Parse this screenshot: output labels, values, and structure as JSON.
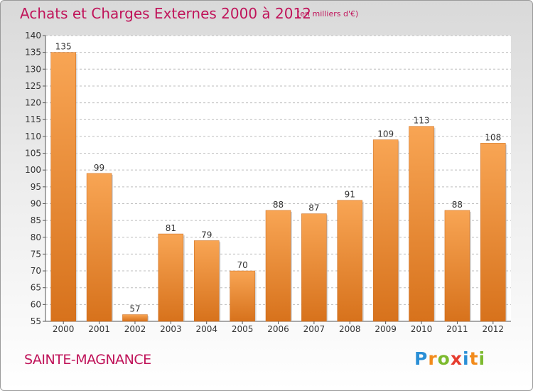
{
  "header": {
    "title": "Achats et Charges Externes 2000 à 2012",
    "subtitle": "(en milliers d'€)"
  },
  "place": "SAINTE-MAGNANCE",
  "logo": {
    "letters": [
      "P",
      "r",
      "o",
      "x",
      "i",
      "t",
      "i"
    ],
    "colors": [
      "#2a8fd6",
      "#f28b1c",
      "#7cba2e",
      "#e63c2e",
      "#2a8fd6",
      "#f28b1c",
      "#7cba2e"
    ]
  },
  "colors": {
    "bar_light": "#f8a554",
    "bar_dark": "#d7721c",
    "title": "#c0145a"
  },
  "chart_data": {
    "type": "bar",
    "categories": [
      "2000",
      "2001",
      "2002",
      "2003",
      "2004",
      "2005",
      "2006",
      "2007",
      "2008",
      "2009",
      "2010",
      "2011",
      "2012"
    ],
    "values": [
      135,
      99,
      57,
      81,
      79,
      70,
      88,
      87,
      91,
      109,
      113,
      88,
      108
    ],
    "ylim": [
      55,
      140
    ],
    "yticks": [
      55,
      60,
      65,
      70,
      75,
      80,
      85,
      90,
      95,
      100,
      105,
      110,
      115,
      120,
      125,
      130,
      135,
      140
    ],
    "grid": true
  }
}
